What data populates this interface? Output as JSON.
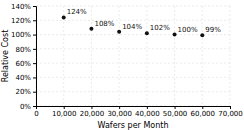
{
  "chart_data": {
    "type": "scatter",
    "x": [
      10000,
      20000,
      30000,
      40000,
      50000,
      60000
    ],
    "values": [
      124,
      108,
      104,
      102,
      100,
      99
    ],
    "value_labels": [
      "124%",
      "108%",
      "104%",
      "102%",
      "100%",
      "99%"
    ],
    "data_labels": true,
    "xlabel": "Wafers per Month",
    "ylabel": "Relative Cost",
    "xlim": [
      0,
      70000
    ],
    "ylim": [
      0,
      140
    ],
    "xticks": [
      0,
      {
        "value": 10000,
        "label": "10,000"
      },
      {
        "value": 20000,
        "label": "20,000"
      },
      {
        "value": 30000,
        "label": "30,000"
      },
      {
        "value": 40000,
        "label": "40,000"
      },
      {
        "value": 50000,
        "label": "50,000"
      },
      {
        "value": 60000,
        "label": "60,000"
      },
      {
        "value": 70000,
        "label": "70,000"
      }
    ],
    "yticks": [
      {
        "value": 0,
        "label": "0%"
      },
      {
        "value": 20,
        "label": "20%"
      },
      {
        "value": 40,
        "label": "40%"
      },
      {
        "value": 60,
        "label": "60%"
      },
      {
        "value": 80,
        "label": "80%"
      },
      {
        "value": 100,
        "label": "100%"
      },
      {
        "value": 120,
        "label": "120%"
      },
      {
        "value": 140,
        "label": "140%"
      }
    ],
    "color": "#111111",
    "grid": true
  }
}
